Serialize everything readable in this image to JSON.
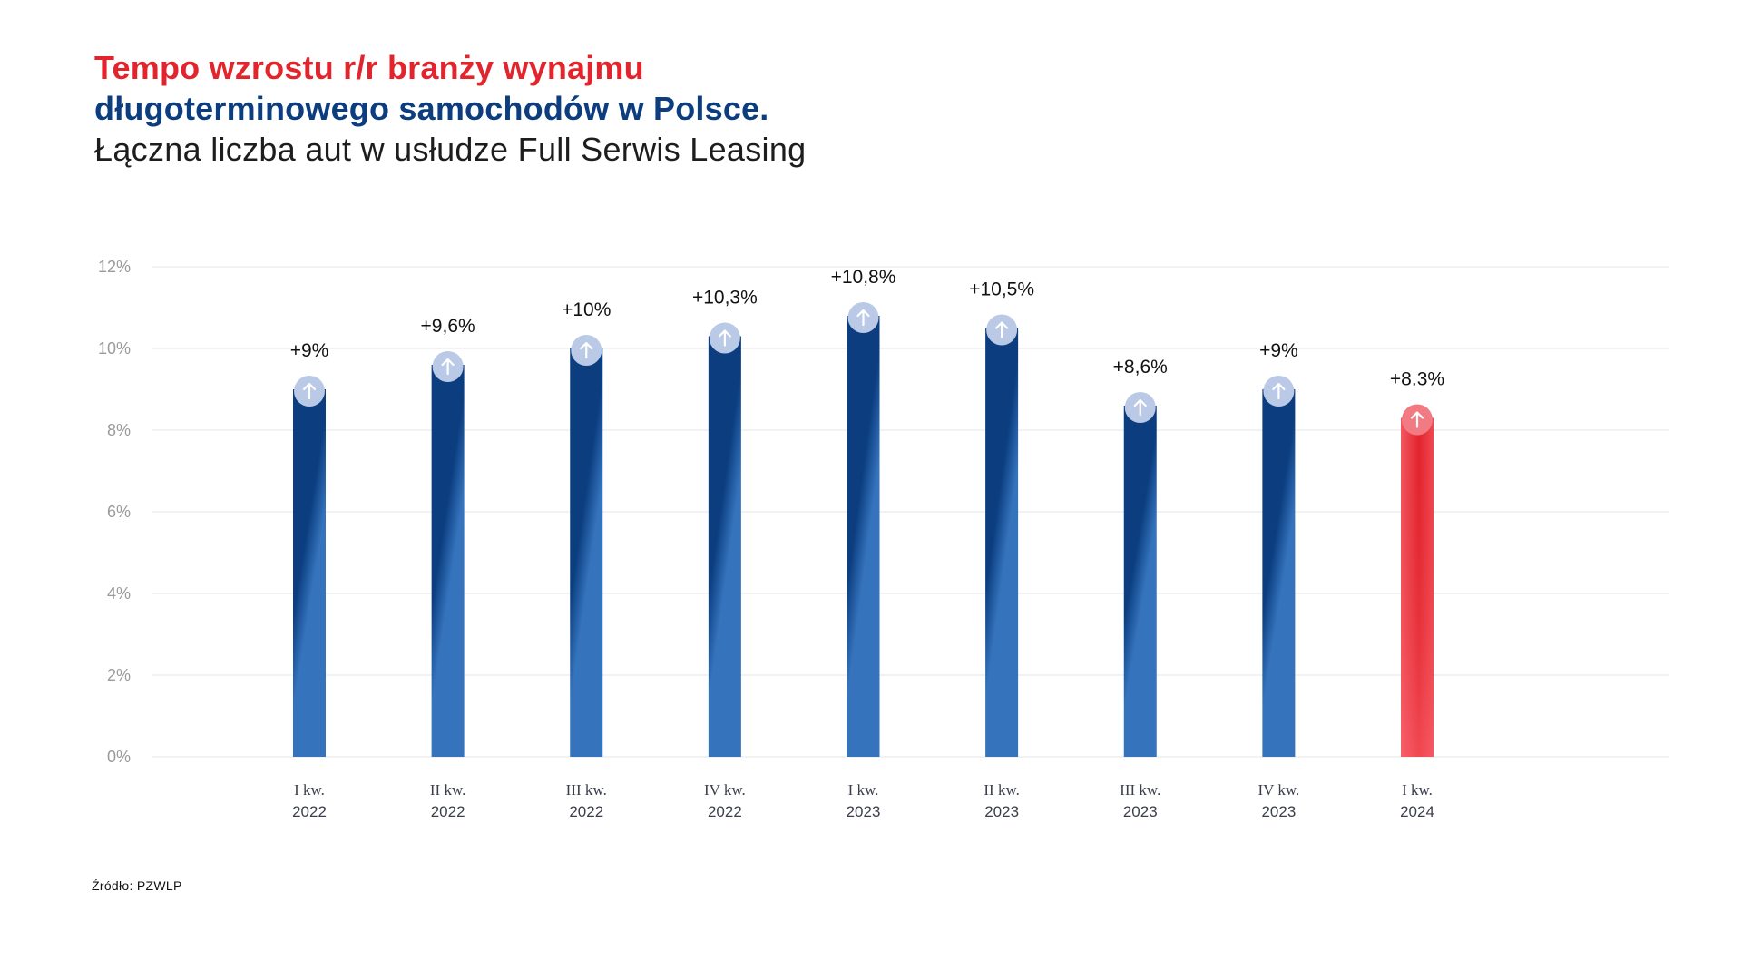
{
  "header": {
    "title_line1": "Tempo wzrostu r/r branży wynajmu",
    "title_line2": "długoterminowego samochodów w Polsce.",
    "subtitle": "Łączna liczba aut w usłudze Full Serwis Leasing"
  },
  "footer": {
    "source": "Źródło: PZWLP"
  },
  "colors": {
    "title_red": "#e2242d",
    "title_blue": "#0b3d7f",
    "bar_dark_blue": "#0b3d7f",
    "bar_light_blue": "#3574bd",
    "bar_red": "#e2242d",
    "bar_red_light": "#fb5561",
    "marker_blue": "#b9c9e6",
    "marker_red": "#f27a82",
    "grid": "#e9e9e9",
    "tick_label": "#9a9a9a",
    "category_label": "#3a3f4b",
    "value_label": "#111111"
  },
  "chart_data": {
    "type": "bar",
    "title": "Tempo wzrostu r/r branży wynajmu długoterminowego samochodów w Polsce.",
    "subtitle": "Łączna liczba aut w usłudze Full Serwis Leasing",
    "xlabel": "",
    "ylabel": "",
    "ylim": [
      0,
      12
    ],
    "yticks": [
      0,
      2,
      4,
      6,
      8,
      10,
      12
    ],
    "ytick_labels": [
      "0%",
      "2%",
      "4%",
      "6%",
      "8%",
      "10%",
      "12%"
    ],
    "grid": true,
    "legend": "none",
    "categories": [
      [
        "I kw.",
        "2022"
      ],
      [
        "II kw.",
        "2022"
      ],
      [
        "III kw.",
        "2022"
      ],
      [
        "IV kw.",
        "2022"
      ],
      [
        "I kw.",
        "2023"
      ],
      [
        "II kw.",
        "2023"
      ],
      [
        "III kw.",
        "2023"
      ],
      [
        "IV kw.",
        "2023"
      ],
      [
        "I kw.",
        "2024"
      ]
    ],
    "values": [
      9,
      9.6,
      10,
      10.3,
      10.8,
      10.5,
      8.6,
      9,
      8.3
    ],
    "data_labels": [
      "+9%",
      "+9,6%",
      "+10%",
      "+10,3%",
      "+10,8%",
      "+10,5%",
      "+8,6%",
      "+9%",
      "+8.3%"
    ],
    "highlight_index": 8
  }
}
